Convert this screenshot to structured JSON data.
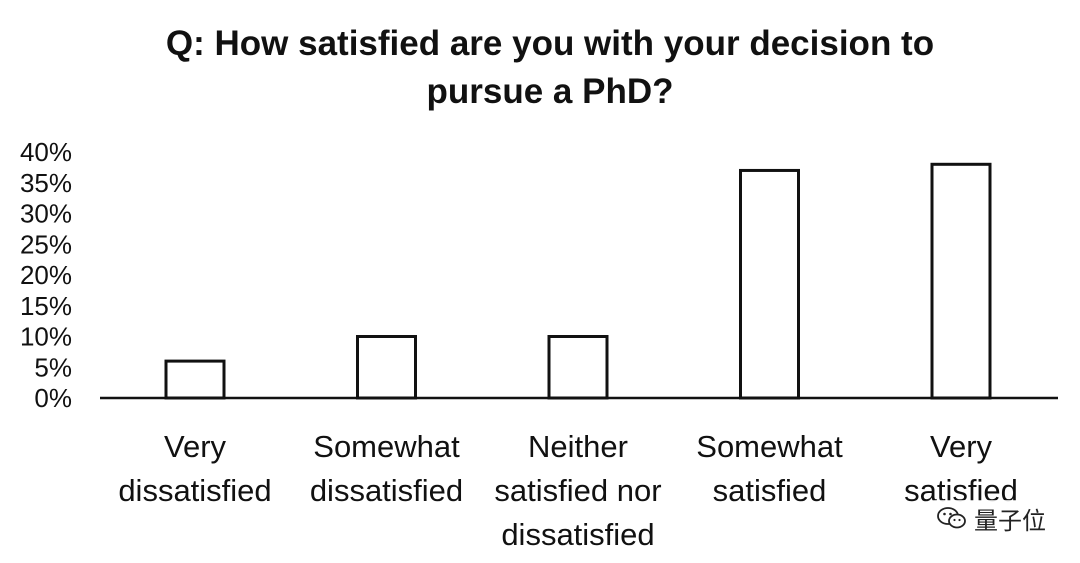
{
  "chart_data": {
    "type": "bar",
    "title": "Q: How satisfied are you with your decision to pursue a PhD?",
    "categories": [
      [
        "Very",
        "dissatisfied"
      ],
      [
        "Somewhat",
        "dissatisfied"
      ],
      [
        "Neither",
        "satisfied nor",
        "dissatisfied"
      ],
      [
        "Somewhat",
        "satisfied"
      ],
      [
        "Very",
        "satisfied"
      ]
    ],
    "values": [
      6,
      10,
      10,
      37,
      38
    ],
    "value_format": "percent",
    "ylim": [
      0,
      40
    ],
    "yticks": [
      "0%",
      "5%",
      "10%",
      "15%",
      "20%",
      "25%",
      "30%",
      "35%",
      "40%"
    ],
    "xlabel": "",
    "ylabel": "",
    "grid": false,
    "bar_fill": "#ffffff",
    "bar_stroke": "#111111"
  },
  "watermark": {
    "text": "量子位",
    "icon": "wechat-icon"
  }
}
